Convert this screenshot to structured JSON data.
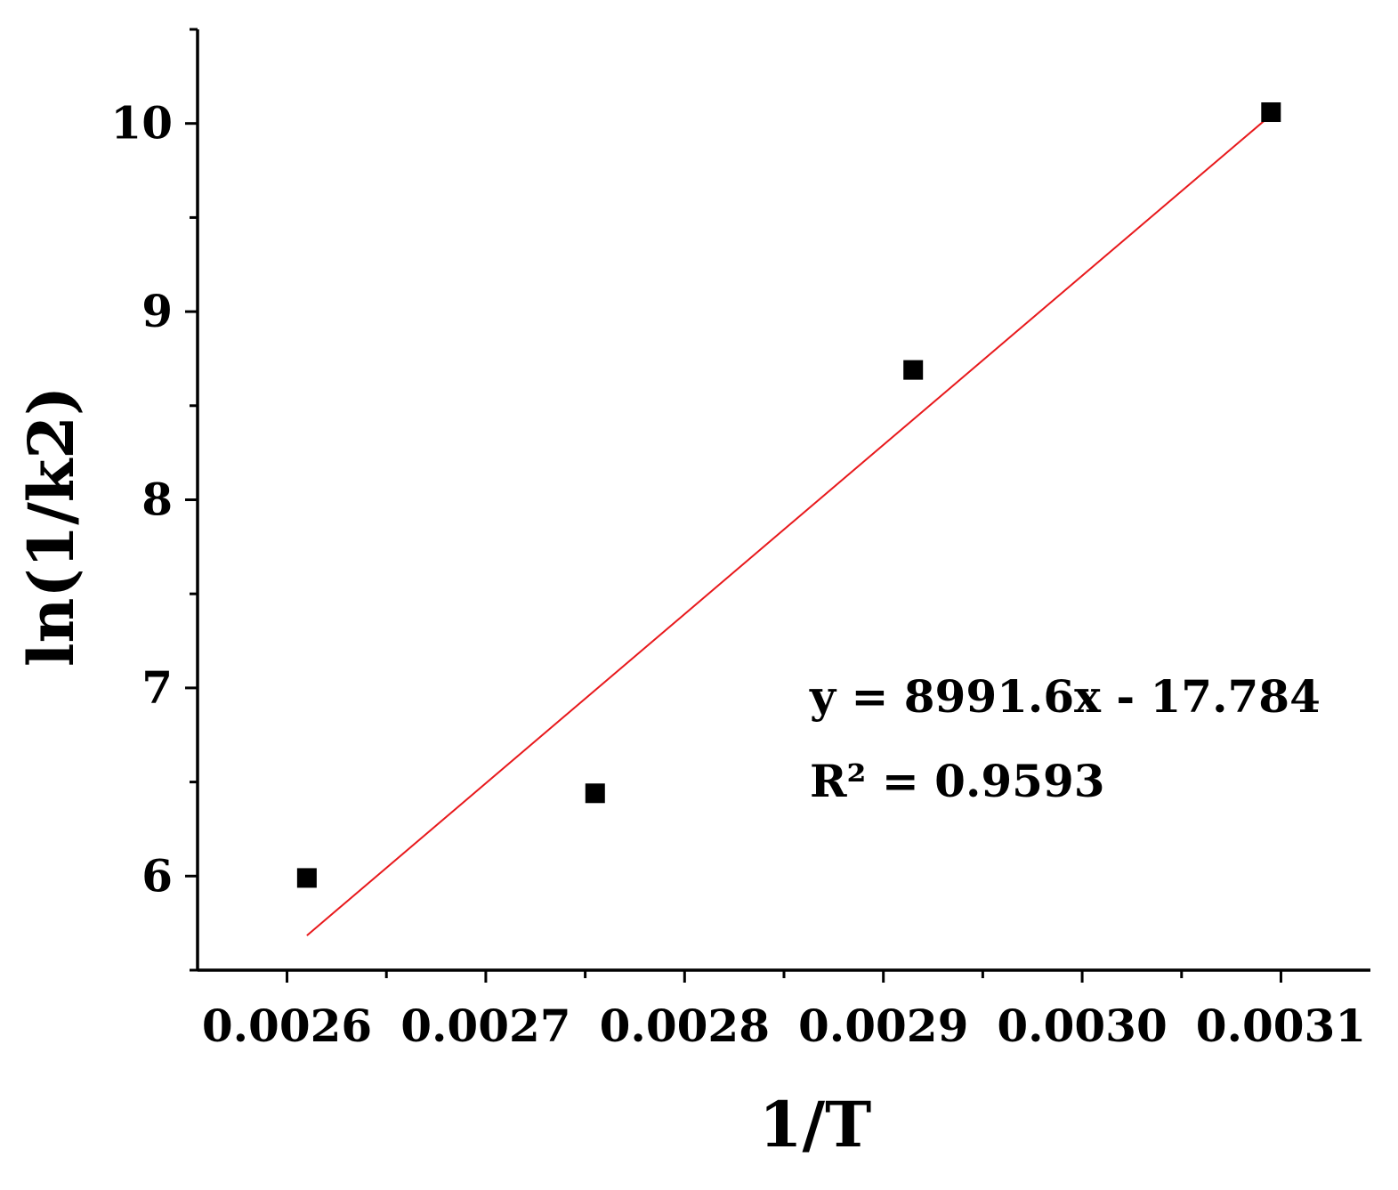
{
  "chart_data": {
    "type": "scatter",
    "xlabel": "1/T",
    "ylabel": "ln(1/k2)",
    "xlim": [
      0.002555,
      0.003145
    ],
    "ylim": [
      5.5,
      10.5
    ],
    "x_ticks": [
      0.0026,
      0.0027,
      0.0028,
      0.0029,
      0.003,
      0.0031
    ],
    "x_tick_labels": [
      "0.0026",
      "0.0027",
      "0.0028",
      "0.0029",
      "0.0030",
      "0.0031"
    ],
    "y_ticks": [
      6,
      7,
      8,
      9,
      10
    ],
    "y_tick_labels": [
      "6",
      "7",
      "8",
      "9",
      "10"
    ],
    "grid": false,
    "series": [
      {
        "type": "scatter",
        "marker": "square",
        "color": "#000000",
        "points": [
          {
            "x": 0.00261,
            "y": 5.99
          },
          {
            "x": 0.002755,
            "y": 6.44
          },
          {
            "x": 0.002915,
            "y": 8.69
          },
          {
            "x": 0.003095,
            "y": 10.06
          }
        ]
      },
      {
        "type": "line",
        "color": "#e8191c",
        "slope": 8991.6,
        "intercept": -17.784,
        "x_range": [
          0.00261,
          0.003095
        ]
      }
    ],
    "annotations": [
      "y = 8991.6x - 17.784",
      "R² = 0.9593"
    ]
  }
}
